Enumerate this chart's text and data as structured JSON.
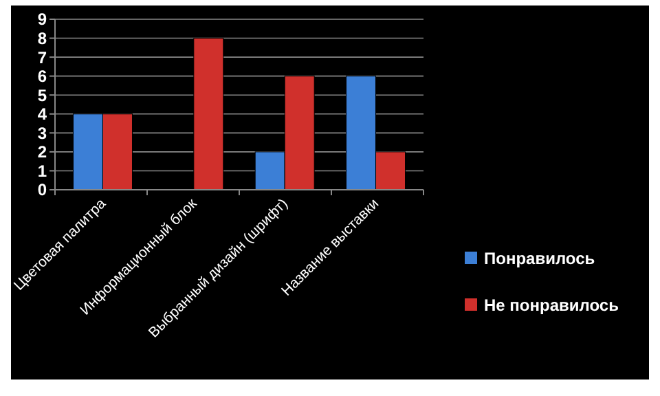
{
  "chart_data": {
    "type": "bar",
    "categories": [
      "Цветовая палитра",
      "Информационный блок",
      "Выбранный дизайн (шрифт)",
      "Название выставки"
    ],
    "series": [
      {
        "name": "Понравилось",
        "color": "#3c7fd6",
        "values": [
          4,
          0,
          2,
          6
        ]
      },
      {
        "name": "Не понравилось",
        "color": "#d0302c",
        "values": [
          4,
          8,
          6,
          2
        ]
      }
    ],
    "ylim": [
      0,
      9
    ],
    "yticks": [
      0,
      1,
      2,
      3,
      4,
      5,
      6,
      7,
      8,
      9
    ],
    "grid": "y",
    "legend": "right"
  }
}
